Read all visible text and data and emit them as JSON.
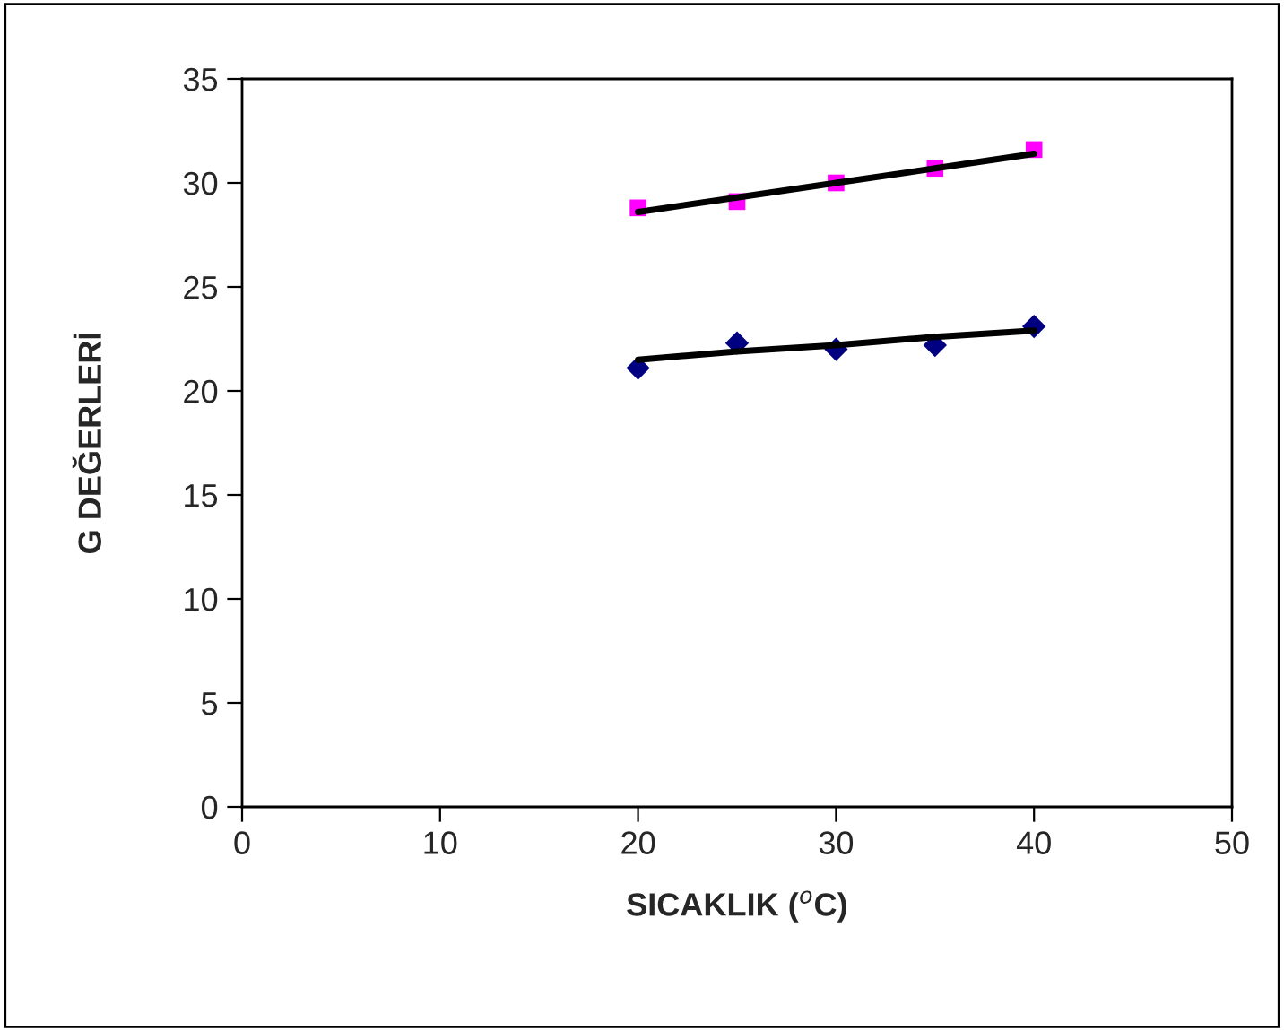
{
  "chart_data": {
    "type": "scatter",
    "xlabel": "SICAKLIK ($^{o}$C)",
    "ylabel": "G DEĞERLERİ",
    "x": [
      20,
      25,
      30,
      35,
      40
    ],
    "series": [
      {
        "color": "#ff00ff",
        "marker": "square",
        "values": [
          28.8,
          29.1,
          30.0,
          30.7,
          31.6
        ]
      },
      {
        "color": "#000080",
        "marker": "diamond",
        "values": [
          21.1,
          22.3,
          22.0,
          22.2,
          23.1
        ]
      },
      {
        "type": "line",
        "color": "#000000",
        "marker": "none",
        "values": [
          28.6,
          29.3,
          30.0,
          30.7,
          31.4
        ]
      },
      {
        "type": "line",
        "color": "#000000",
        "marker": "none",
        "values": [
          21.5,
          21.9,
          22.2,
          22.6,
          22.9
        ]
      }
    ],
    "xlim": [
      0,
      50
    ],
    "xticks": [
      0,
      10,
      20,
      30,
      40,
      50
    ],
    "ylim": [
      0,
      35
    ],
    "yticks": [
      0,
      5,
      10,
      15,
      20,
      25,
      30,
      35
    ],
    "grid": false,
    "legend": false
  }
}
